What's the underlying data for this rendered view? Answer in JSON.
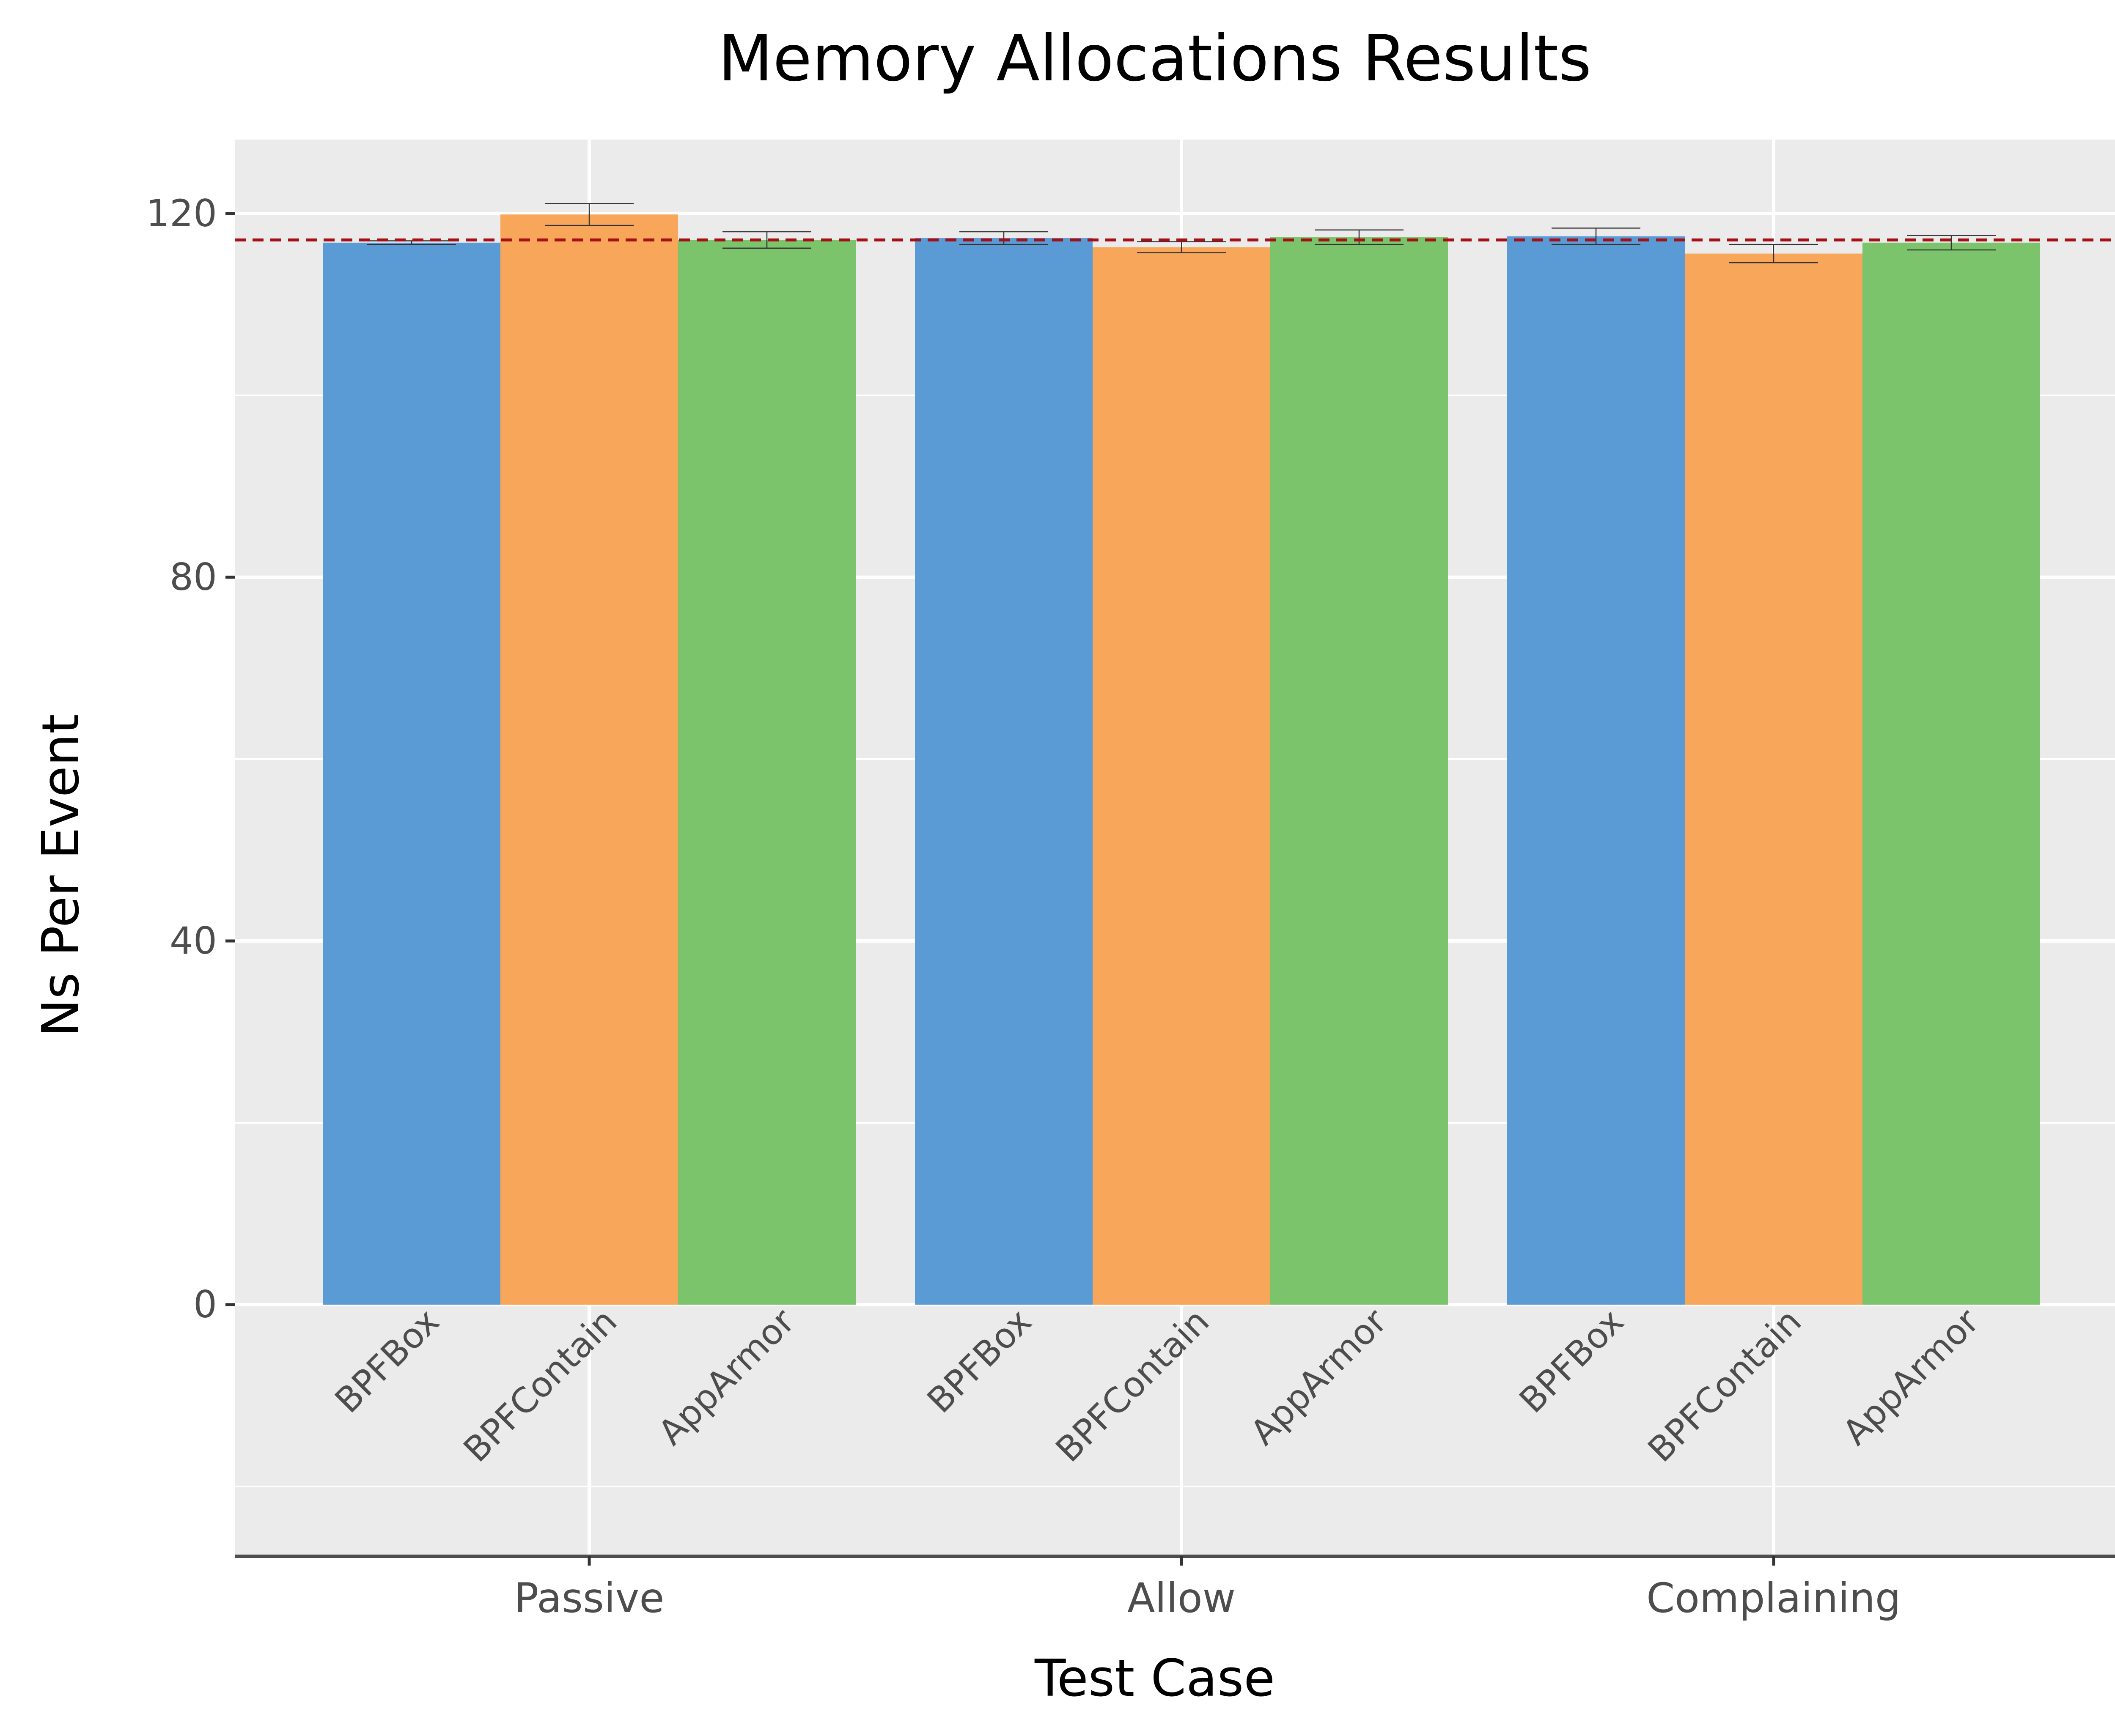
{
  "chart_data": {
    "type": "bar",
    "title": "Memory Allocations Results",
    "xlabel": "Test Case",
    "ylabel": "Ns Per Event",
    "categories": [
      "Passive",
      "Allow",
      "Complaining"
    ],
    "series": [
      {
        "name": "BPFBox",
        "color": "#5b9bd5",
        "values": [
          116.8,
          117.3,
          117.5
        ],
        "errors": [
          0.2,
          0.7,
          0.9
        ]
      },
      {
        "name": "BPFContain",
        "color": "#f8a65a",
        "values": [
          119.9,
          116.3,
          115.6
        ],
        "errors": [
          1.2,
          0.6,
          1.0
        ]
      },
      {
        "name": "AppArmor",
        "color": "#7bc46c",
        "values": [
          117.1,
          117.4,
          116.8
        ],
        "errors": [
          0.9,
          0.8,
          0.8
        ]
      }
    ],
    "reference_line": {
      "value": 117.1,
      "color": "#a50f15",
      "style": "dashed"
    },
    "yticks": [
      0,
      40,
      80,
      120
    ],
    "ylim": [
      -27,
      128.5
    ],
    "grid": true,
    "legend": "none"
  }
}
